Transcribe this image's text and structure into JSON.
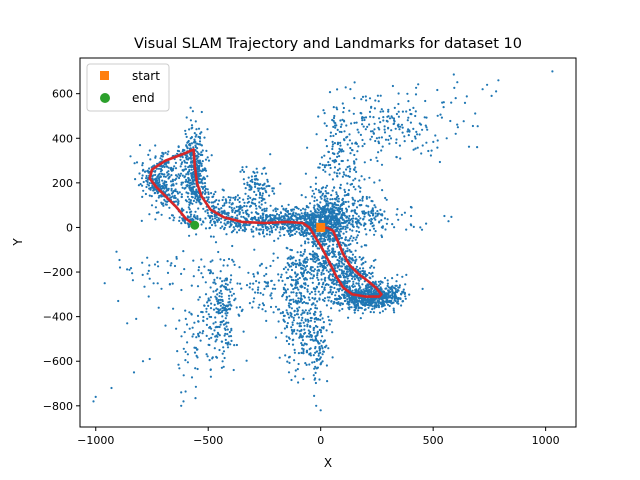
{
  "chart_data": {
    "type": "scatter",
    "title": "Visual SLAM Trajectory and Landmarks for dataset 10",
    "xlabel": "X",
    "ylabel": "Y",
    "xlim": [
      -1070,
      1135
    ],
    "ylim": [
      -895,
      760
    ],
    "x_ticks": [
      -1000,
      -500,
      0,
      500,
      1000
    ],
    "y_ticks": [
      -800,
      -600,
      -400,
      -200,
      0,
      200,
      400,
      600
    ],
    "x_tick_labels": [
      "−1000",
      "−500",
      "0",
      "500",
      "1000"
    ],
    "y_tick_labels": [
      "−800",
      "−600",
      "−400",
      "−200",
      "0",
      "200",
      "400",
      "600"
    ],
    "grid": false,
    "legend": {
      "position": "top-left",
      "entries": [
        {
          "label": "start",
          "marker": "square",
          "color": "#ff7f0e"
        },
        {
          "label": "end",
          "marker": "circle",
          "color": "#2ca02c"
        }
      ]
    },
    "colors": {
      "landmarks": "#1f77b4",
      "trajectory": "#d62728",
      "start": "#ff7f0e",
      "end": "#2ca02c"
    },
    "start_point": {
      "x": 0,
      "y": 0
    },
    "end_point": {
      "x": -560,
      "y": 10
    },
    "trajectory": [
      [
        0,
        0
      ],
      [
        30,
        -2
      ],
      [
        55,
        -15
      ],
      [
        75,
        -60
      ],
      [
        100,
        -120
      ],
      [
        130,
        -170
      ],
      [
        170,
        -210
      ],
      [
        210,
        -240
      ],
      [
        245,
        -270
      ],
      [
        270,
        -300
      ],
      [
        260,
        -310
      ],
      [
        200,
        -310
      ],
      [
        140,
        -300
      ],
      [
        100,
        -270
      ],
      [
        70,
        -220
      ],
      [
        40,
        -160
      ],
      [
        10,
        -100
      ],
      [
        -20,
        -50
      ],
      [
        -50,
        0
      ],
      [
        -80,
        20
      ],
      [
        -150,
        25
      ],
      [
        -250,
        20
      ],
      [
        -350,
        25
      ],
      [
        -430,
        45
      ],
      [
        -490,
        80
      ],
      [
        -530,
        140
      ],
      [
        -550,
        200
      ],
      [
        -560,
        280
      ],
      [
        -565,
        350
      ],
      [
        -610,
        330
      ],
      [
        -690,
        300
      ],
      [
        -750,
        260
      ],
      [
        -760,
        220
      ],
      [
        -730,
        180
      ],
      [
        -690,
        140
      ],
      [
        -640,
        90
      ],
      [
        -600,
        40
      ],
      [
        -560,
        10
      ]
    ],
    "landmark_clusters": [
      {
        "x": -100,
        "y": 30,
        "sx": 200,
        "sy": 30,
        "n": 700
      },
      {
        "x": 20,
        "y": 40,
        "sx": 50,
        "sy": 60,
        "n": 350
      },
      {
        "x": 200,
        "y": -320,
        "sx": 70,
        "sy": 25,
        "n": 350
      },
      {
        "x": 100,
        "y": -200,
        "sx": 60,
        "sy": 80,
        "n": 250
      },
      {
        "x": -560,
        "y": 250,
        "sx": 25,
        "sy": 100,
        "n": 300
      },
      {
        "x": -700,
        "y": 200,
        "sx": 50,
        "sy": 60,
        "n": 200
      },
      {
        "x": -440,
        "y": -380,
        "sx": 40,
        "sy": 120,
        "n": 220
      },
      {
        "x": -100,
        "y": -380,
        "sx": 40,
        "sy": 130,
        "n": 240
      },
      {
        "x": -20,
        "y": -500,
        "sx": 25,
        "sy": 100,
        "n": 140
      },
      {
        "x": 80,
        "y": 250,
        "sx": 50,
        "sy": 150,
        "n": 220
      },
      {
        "x": 300,
        "y": 450,
        "sx": 120,
        "sy": 80,
        "n": 180
      },
      {
        "x": -50,
        "y": -180,
        "sx": 60,
        "sy": 60,
        "n": 160
      },
      {
        "x": -280,
        "y": 180,
        "sx": 40,
        "sy": 60,
        "n": 100
      },
      {
        "x": -550,
        "y": -500,
        "sx": 60,
        "sy": 100,
        "n": 70
      },
      {
        "x": 300,
        "y": -300,
        "sx": 40,
        "sy": 30,
        "n": 120
      },
      {
        "x": -250,
        "y": -250,
        "sx": 60,
        "sy": 60,
        "n": 70
      },
      {
        "x": -700,
        "y": -200,
        "sx": 120,
        "sy": 60,
        "n": 40
      },
      {
        "x": 200,
        "y": 100,
        "sx": 50,
        "sy": 60,
        "n": 60
      },
      {
        "x": -400,
        "y": 100,
        "sx": 60,
        "sy": 30,
        "n": 80
      },
      {
        "x": 550,
        "y": 500,
        "sx": 80,
        "sy": 100,
        "n": 20
      }
    ],
    "landmark_outliers": [
      [
        -1000,
        -760
      ],
      [
        -1010,
        -780
      ],
      [
        -930,
        -720
      ],
      [
        -830,
        -650
      ],
      [
        -790,
        -600
      ],
      [
        -760,
        -590
      ],
      [
        -610,
        -780
      ],
      [
        -620,
        -800
      ],
      [
        -620,
        -740
      ],
      [
        -690,
        -440
      ],
      [
        -860,
        -430
      ],
      [
        -820,
        -410
      ],
      [
        1030,
        700
      ],
      [
        790,
        660
      ],
      [
        740,
        640
      ],
      [
        760,
        590
      ],
      [
        720,
        620
      ],
      [
        780,
        610
      ],
      [
        600,
        580
      ],
      [
        580,
        560
      ],
      [
        540,
        560
      ],
      [
        600,
        420
      ],
      [
        560,
        400
      ],
      [
        520,
        390
      ],
      [
        470,
        380
      ],
      [
        420,
        500
      ],
      [
        380,
        520
      ],
      [
        0,
        -820
      ],
      [
        -20,
        -800
      ],
      [
        -640,
        -140
      ],
      [
        -760,
        -230
      ],
      [
        -850,
        -190
      ],
      [
        -720,
        -360
      ],
      [
        -960,
        -250
      ],
      [
        -900,
        -330
      ]
    ]
  }
}
